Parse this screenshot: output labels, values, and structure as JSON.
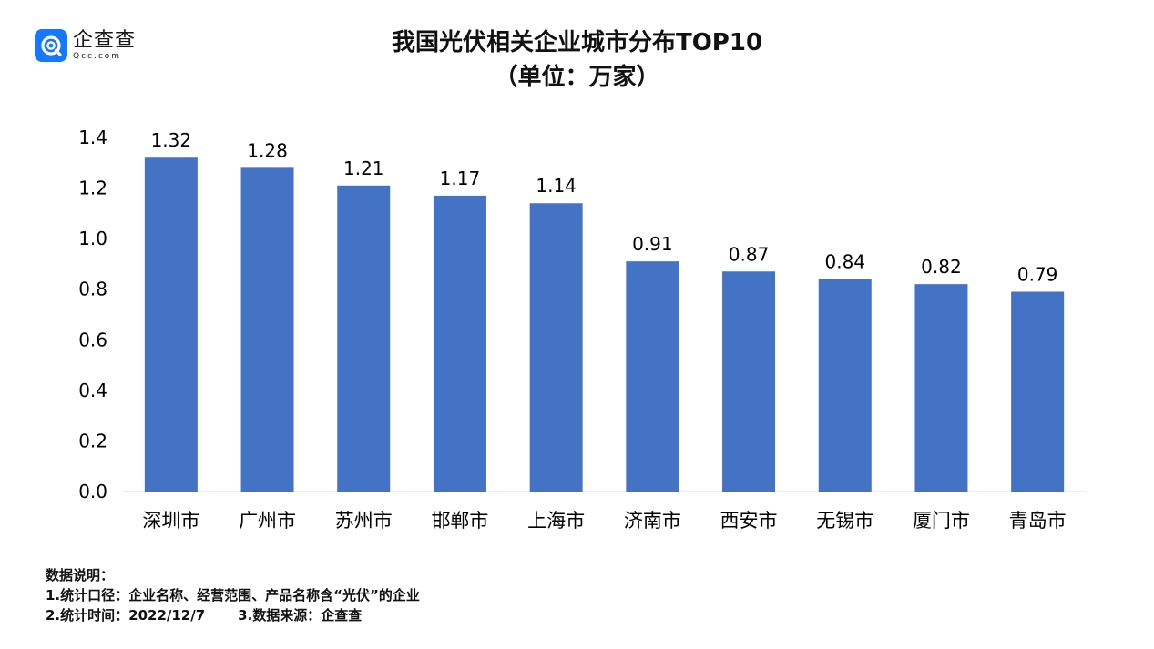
{
  "logo": {
    "name": "企查查",
    "domain": "Qcc.com",
    "icon": "qcc-logo-icon",
    "color": "#1677ff"
  },
  "title": {
    "line1": "我国光伏相关企业城市分布TOP10",
    "line2": "（单位：万家）"
  },
  "chart_data": {
    "type": "bar",
    "title": "我国光伏相关企业城市分布TOP10（单位：万家）",
    "categories": [
      "深圳市",
      "广州市",
      "苏州市",
      "邯郸市",
      "上海市",
      "济南市",
      "西安市",
      "无锡市",
      "厦门市",
      "青岛市"
    ],
    "values": [
      1.32,
      1.28,
      1.21,
      1.17,
      1.14,
      0.91,
      0.87,
      0.84,
      0.82,
      0.79
    ],
    "value_labels": [
      "1.32",
      "1.28",
      "1.21",
      "1.17",
      "1.14",
      "0.91",
      "0.87",
      "0.84",
      "0.82",
      "0.79"
    ],
    "yticks": [
      "0.0",
      "0.2",
      "0.4",
      "0.6",
      "0.8",
      "1.0",
      "1.2",
      "1.4"
    ],
    "ylim": [
      0,
      1.4
    ],
    "grid": false,
    "legend": "none",
    "bar_color": "#4472c4"
  },
  "notes": {
    "heading": "数据说明：",
    "line1": "1.统计口径：企业名称、经营范围、产品名称含“光伏”的企业",
    "line2a": "2.统计时间：2022/12/7",
    "line2b": "3.数据来源：企查查"
  }
}
